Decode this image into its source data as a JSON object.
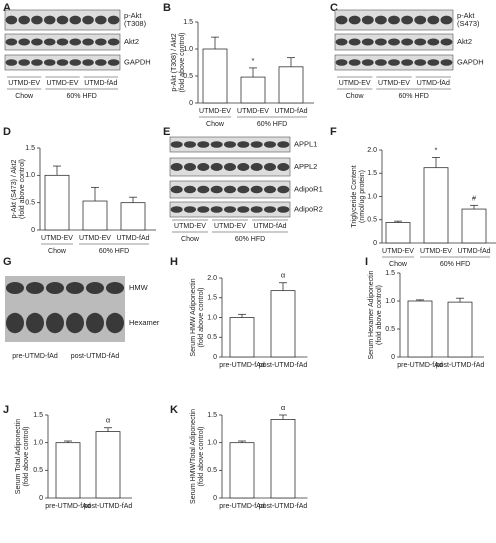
{
  "chart_data": [
    {
      "type": "bar",
      "panel": "B",
      "ylabel": [
        "p-Akt (T308) / Akt2",
        "(fold above control)"
      ],
      "categories": [
        "UTMD-EV",
        "UTMD-EV",
        "UTMD-fAd"
      ],
      "group_labels": [
        "Chow",
        "60% HFD"
      ],
      "values": [
        1.0,
        0.48,
        0.67
      ],
      "errors": [
        0.22,
        0.17,
        0.17
      ],
      "bar_annotations": [
        null,
        "*",
        null
      ],
      "color": "#ffffff",
      "ylim": [
        0,
        1.5
      ],
      "yticks": [
        0,
        0.5,
        {
          "value": 1,
          "label": "1.0"
        },
        1.5
      ]
    },
    {
      "type": "bar",
      "panel": "D",
      "ylabel": [
        "p-Akt (S473) / Akt2",
        "(fold above control)"
      ],
      "categories": [
        "UTMD-EV",
        "UTMD-EV",
        "UTMD-fAd"
      ],
      "group_labels": [
        "Chow",
        "60% HFD"
      ],
      "values": [
        1.0,
        0.53,
        0.5
      ],
      "errors": [
        0.17,
        0.25,
        0.1
      ],
      "color": "#ffffff",
      "ylim": [
        0,
        1.5
      ],
      "yticks": [
        0,
        0.5,
        {
          "value": 1,
          "label": "1.0"
        },
        1.5
      ]
    },
    {
      "type": "bar",
      "panel": "F",
      "ylabel": [
        "Triglyceride Content",
        "(nmol/ug protein)"
      ],
      "categories": [
        "UTMD-EV",
        "UTMD-EV",
        "UTMD-fAd"
      ],
      "group_labels": [
        "Chow",
        "60% HFD"
      ],
      "values": [
        0.44,
        1.62,
        0.73
      ],
      "errors": [
        0.03,
        0.22,
        0.08
      ],
      "bar_annotations": [
        null,
        "*",
        "#"
      ],
      "color": "#ffffff",
      "ylim": [
        0,
        2
      ],
      "yticks": [
        0,
        0.5,
        {
          "value": 1,
          "label": "1.0"
        },
        1.5,
        {
          "value": 2,
          "label": "2.0"
        }
      ]
    },
    {
      "type": "bar",
      "panel": "H",
      "ylabel": [
        "Serum HMW Adiponectin",
        "(fold above control)"
      ],
      "categories": [
        "pre-UTMD-fAd",
        "post-UTMD-fAd"
      ],
      "values": [
        1.0,
        1.68
      ],
      "errors": [
        0.08,
        0.2
      ],
      "bar_annotations": [
        null,
        "α"
      ],
      "color": "#ffffff",
      "ylim": [
        0,
        2
      ],
      "yticks": [
        0,
        0.5,
        {
          "value": 1,
          "label": "1.0"
        },
        1.5,
        {
          "value": 2,
          "label": "2.0"
        }
      ]
    },
    {
      "type": "bar",
      "panel": "I",
      "ylabel": [
        "Serum Hexamer Adiponectin",
        "(fold above control)"
      ],
      "categories": [
        "pre-UTMD-fAd",
        "post-UTMD-fAd"
      ],
      "values": [
        1.0,
        0.98
      ],
      "errors": [
        0.02,
        0.07
      ],
      "color": "#ffffff",
      "ylim": [
        0,
        1.5
      ],
      "yticks": [
        0,
        0.5,
        {
          "value": 1,
          "label": "1.0"
        },
        1.5
      ]
    },
    {
      "type": "bar",
      "panel": "J",
      "ylabel": [
        "Serum Total Adiponectin",
        "(fold above control)"
      ],
      "categories": [
        "pre-UTMD-fAd",
        "post-UTMD-fAd"
      ],
      "values": [
        1.0,
        1.2
      ],
      "errors": [
        0.03,
        0.07
      ],
      "bar_annotations": [
        null,
        "α"
      ],
      "color": "#ffffff",
      "ylim": [
        0,
        1.5
      ],
      "yticks": [
        0,
        0.5,
        {
          "value": 1,
          "label": "1.0"
        },
        1.5
      ]
    },
    {
      "type": "bar",
      "panel": "K",
      "ylabel": [
        "Serum HMW/Total Adiponectin",
        "(fold above control)"
      ],
      "categories": [
        "pre-UTMD-fAd",
        "post-UTMD-fAd"
      ],
      "values": [
        1.0,
        1.42
      ],
      "errors": [
        0.03,
        0.08
      ],
      "bar_annotations": [
        null,
        "α"
      ],
      "color": "#ffffff",
      "ylim": [
        0,
        1.5
      ],
      "yticks": [
        0,
        0.5,
        {
          "value": 1,
          "label": "1.0"
        },
        1.5
      ]
    }
  ],
  "blots": [
    {
      "panel": "A",
      "bands": [
        [
          "p-Akt",
          "(T308)"
        ],
        [
          "Akt2"
        ],
        [
          "GAPDH"
        ]
      ],
      "categories": [
        "UTMD-EV",
        "UTMD-EV",
        "UTMD-fAd"
      ],
      "group_labels": [
        "Chow",
        "60% HFD"
      ]
    },
    {
      "panel": "C",
      "bands": [
        [
          "p-Akt",
          "(S473)"
        ],
        [
          "Akt2"
        ],
        [
          "GAPDH"
        ]
      ],
      "categories": [
        "UTMD-EV",
        "UTMD-EV",
        "UTMD-fAd"
      ],
      "group_labels": [
        "Chow",
        "60% HFD"
      ]
    },
    {
      "panel": "E",
      "bands": [
        [
          "APPL1"
        ],
        [
          "APPL2"
        ],
        [
          "AdipoR1"
        ],
        [
          "AdipoR2"
        ]
      ],
      "categories": [
        "UTMD-EV",
        "UTMD-EV",
        "UTMD-fAd"
      ],
      "group_labels": [
        "Chow",
        "60% HFD"
      ]
    },
    {
      "panel": "G",
      "bands": [
        [
          "HMW"
        ],
        [
          "Hexamer"
        ]
      ],
      "categories": [
        "pre-UTMD-fAd",
        "post-UTMD-fAd"
      ]
    }
  ]
}
